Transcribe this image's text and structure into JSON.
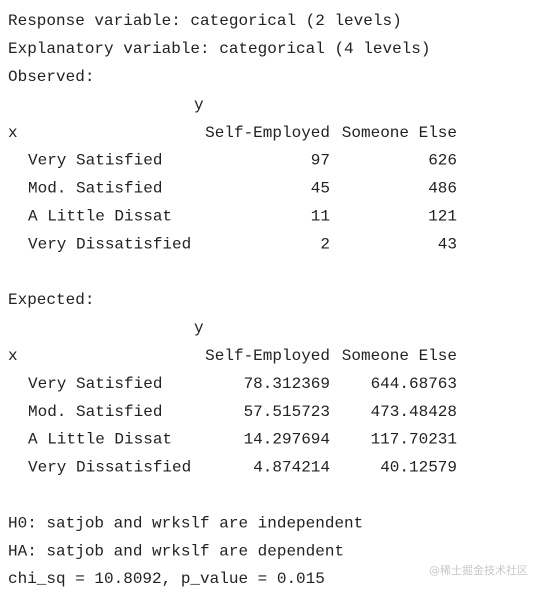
{
  "intro": [
    "Response variable: categorical (2 levels)",
    "Explanatory variable: categorical (4 levels)"
  ],
  "observed": {
    "title": "Observed:",
    "col_var": "y",
    "row_var": "x",
    "columns": [
      "Self-Employed",
      "Someone Else"
    ],
    "rows": [
      {
        "label": "Very Satisfied",
        "values": [
          97,
          626
        ]
      },
      {
        "label": "Mod. Satisfied",
        "values": [
          45,
          486
        ]
      },
      {
        "label": "A Little Dissat",
        "values": [
          11,
          121
        ]
      },
      {
        "label": "Very Dissatisfied",
        "values": [
          2,
          43
        ]
      }
    ]
  },
  "expected": {
    "title": "Expected:",
    "col_var": "y",
    "row_var": "x",
    "columns": [
      "Self-Employed",
      "Someone Else"
    ],
    "rows": [
      {
        "label": "Very Satisfied",
        "values": [
          78.312369,
          644.68763
        ]
      },
      {
        "label": "Mod. Satisfied",
        "values": [
          57.515723,
          473.48428
        ]
      },
      {
        "label": "A Little Dissat",
        "values": [
          14.297694,
          117.70231
        ]
      },
      {
        "label": "Very Dissatisfied",
        "values": [
          4.874214,
          40.12579
        ]
      }
    ]
  },
  "conclusion": [
    "H0: satjob and wrkslf are independent",
    "HA: satjob and wrkslf are dependent",
    "chi_sq = 10.8092, p_value = 0.015"
  ],
  "watermark": "@稀土掘金技术社区"
}
